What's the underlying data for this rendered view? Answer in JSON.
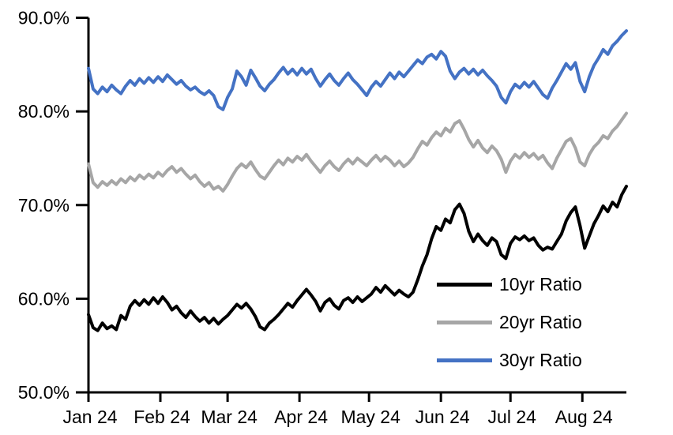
{
  "chart_data": {
    "type": "line",
    "title": "",
    "xlabel": "",
    "ylabel": "",
    "grid": false,
    "legend_position": "lower right",
    "ylim": [
      50,
      90
    ],
    "y_tick_values": [
      50,
      60,
      70,
      80,
      90
    ],
    "y_tick_labels": [
      "50.0%",
      "60.0%",
      "70.0%",
      "80.0%",
      "90.0%"
    ],
    "x_range_days": [
      0,
      232
    ],
    "x_tick_days": [
      0,
      31,
      60,
      91,
      121,
      152,
      182,
      213
    ],
    "x_tick_labels": [
      "Jan 24",
      "Feb 24",
      "Mar 24",
      "Apr 24",
      "May 24",
      "Jun 24",
      "Jul 24",
      "Aug 24"
    ],
    "axis_color": "#000000",
    "x_days": [
      0,
      2,
      4,
      6,
      8,
      10,
      12,
      14,
      16,
      18,
      20,
      22,
      24,
      26,
      28,
      30,
      32,
      34,
      36,
      38,
      40,
      42,
      44,
      46,
      48,
      50,
      52,
      54,
      56,
      58,
      60,
      62,
      64,
      66,
      68,
      70,
      72,
      74,
      76,
      78,
      80,
      82,
      84,
      86,
      88,
      90,
      92,
      94,
      96,
      98,
      100,
      102,
      104,
      106,
      108,
      110,
      112,
      114,
      116,
      118,
      120,
      122,
      124,
      126,
      128,
      130,
      132,
      134,
      136,
      138,
      140,
      142,
      144,
      146,
      148,
      150,
      152,
      154,
      156,
      158,
      160,
      162,
      164,
      166,
      168,
      170,
      172,
      174,
      176,
      178,
      180,
      182,
      184,
      186,
      188,
      190,
      192,
      194,
      196,
      198,
      200,
      202,
      204,
      206,
      208,
      210,
      212,
      214,
      216,
      218,
      220,
      222,
      224,
      226,
      228,
      230,
      232
    ],
    "series": [
      {
        "name": "10yr Ratio",
        "color": "#000000",
        "values": [
          58.3,
          56.9,
          56.6,
          57.4,
          56.8,
          57.1,
          56.7,
          58.2,
          57.8,
          59.2,
          59.8,
          59.3,
          59.9,
          59.4,
          60.1,
          59.5,
          60.2,
          59.6,
          58.8,
          59.2,
          58.5,
          58.0,
          58.7,
          58.1,
          57.6,
          58.0,
          57.4,
          57.9,
          57.3,
          57.8,
          58.2,
          58.8,
          59.4,
          59.0,
          59.5,
          58.9,
          58.1,
          57.0,
          56.7,
          57.4,
          57.8,
          58.3,
          58.9,
          59.5,
          59.1,
          59.8,
          60.4,
          61.0,
          60.4,
          59.7,
          58.7,
          59.6,
          60.0,
          59.3,
          58.9,
          59.8,
          60.1,
          59.6,
          60.2,
          59.7,
          60.1,
          60.5,
          61.2,
          60.7,
          61.4,
          60.9,
          60.4,
          60.9,
          60.5,
          60.2,
          60.7,
          62.0,
          63.5,
          64.7,
          66.4,
          67.7,
          67.3,
          68.5,
          68.1,
          69.5,
          70.1,
          69.1,
          67.2,
          66.1,
          66.9,
          66.2,
          65.7,
          66.5,
          66.1,
          64.7,
          64.3,
          65.9,
          66.6,
          66.3,
          66.7,
          66.2,
          66.5,
          65.7,
          65.2,
          65.5,
          65.3,
          66.1,
          66.9,
          68.3,
          69.2,
          69.8,
          67.8,
          65.4,
          66.7,
          68.0,
          68.9,
          69.9,
          69.3,
          70.3,
          69.8,
          71.1,
          72.0
        ]
      },
      {
        "name": "20yr Ratio",
        "color": "#A6A6A6",
        "values": [
          74.4,
          72.4,
          71.9,
          72.5,
          72.1,
          72.6,
          72.2,
          72.8,
          72.4,
          73.0,
          72.6,
          73.2,
          72.8,
          73.3,
          72.9,
          73.5,
          73.1,
          73.7,
          74.1,
          73.5,
          73.9,
          73.3,
          72.8,
          73.2,
          72.5,
          72.0,
          72.4,
          71.7,
          72.0,
          71.5,
          72.2,
          73.1,
          73.9,
          74.4,
          74.0,
          74.6,
          73.8,
          73.1,
          72.8,
          73.5,
          74.2,
          74.8,
          74.3,
          75.0,
          74.6,
          75.2,
          74.8,
          75.4,
          74.7,
          74.1,
          73.5,
          74.2,
          74.7,
          74.1,
          73.7,
          74.4,
          74.9,
          74.4,
          75.0,
          74.6,
          74.2,
          74.8,
          75.3,
          74.7,
          75.2,
          74.8,
          74.2,
          74.7,
          74.1,
          74.5,
          75.1,
          76.0,
          76.8,
          76.4,
          77.2,
          77.8,
          77.4,
          78.2,
          77.8,
          78.7,
          79.0,
          78.1,
          77.0,
          76.2,
          76.9,
          76.1,
          75.6,
          76.3,
          75.8,
          74.9,
          73.5,
          74.7,
          75.4,
          75.0,
          75.6,
          75.1,
          75.5,
          74.9,
          75.3,
          74.5,
          73.9,
          75.0,
          75.9,
          76.8,
          77.1,
          76.1,
          74.6,
          74.2,
          75.4,
          76.2,
          76.7,
          77.4,
          77.1,
          77.9,
          78.4,
          79.1,
          79.8
        ]
      },
      {
        "name": "30yr Ratio",
        "color": "#4472C4",
        "values": [
          84.6,
          82.4,
          81.9,
          82.6,
          82.1,
          82.8,
          82.3,
          81.9,
          82.7,
          83.3,
          82.8,
          83.5,
          83.0,
          83.6,
          83.1,
          83.7,
          83.2,
          83.9,
          83.4,
          82.9,
          83.3,
          82.7,
          82.3,
          82.6,
          82.1,
          81.8,
          82.2,
          81.7,
          80.5,
          80.2,
          81.5,
          82.4,
          84.3,
          83.7,
          82.8,
          84.4,
          83.6,
          82.7,
          82.2,
          82.9,
          83.4,
          84.1,
          84.7,
          84.0,
          84.5,
          83.9,
          84.6,
          84.0,
          84.5,
          83.5,
          82.7,
          83.4,
          84.0,
          83.3,
          82.8,
          83.5,
          84.1,
          83.4,
          82.9,
          82.3,
          81.7,
          82.6,
          83.2,
          82.7,
          83.4,
          84.1,
          83.5,
          84.2,
          83.7,
          84.3,
          84.9,
          85.5,
          85.1,
          85.8,
          86.1,
          85.6,
          86.4,
          85.9,
          84.3,
          83.5,
          84.2,
          84.6,
          84.0,
          84.5,
          83.9,
          84.4,
          83.8,
          83.3,
          82.7,
          81.5,
          80.9,
          82.1,
          82.9,
          82.5,
          83.1,
          82.6,
          83.2,
          82.5,
          81.8,
          81.4,
          82.5,
          83.3,
          84.2,
          85.1,
          84.5,
          85.2,
          83.2,
          82.1,
          83.7,
          84.9,
          85.7,
          86.6,
          86.1,
          87.0,
          87.5,
          88.1,
          88.6
        ]
      }
    ]
  }
}
